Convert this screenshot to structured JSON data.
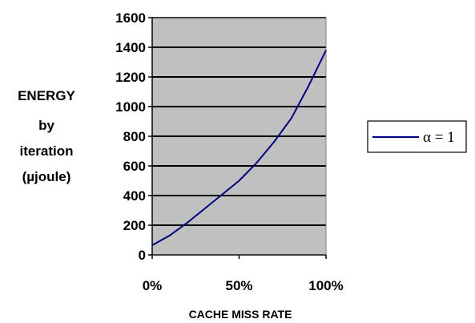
{
  "chart_data": {
    "type": "line",
    "xlabel": "CACHE MISS RATE",
    "ylabel_lines": [
      "ENERGY",
      "by",
      "iteration",
      "(µjoule)"
    ],
    "xlim": [
      0,
      100
    ],
    "ylim": [
      0,
      1600
    ],
    "x_ticks": [
      0,
      50,
      100
    ],
    "x_tick_labels": [
      "0%",
      "50%",
      "100%"
    ],
    "y_ticks": [
      0,
      200,
      400,
      600,
      800,
      1000,
      1200,
      1400,
      1600
    ],
    "y_tick_labels": [
      "0",
      "200",
      "400",
      "600",
      "800",
      "1000",
      "1200",
      "1400",
      "1600"
    ],
    "grid": true,
    "legend_position": "right",
    "plot_background": "#c0c0c0",
    "series": [
      {
        "name": "α = 1",
        "color": "#000080",
        "x": [
          0,
          10,
          20,
          30,
          40,
          50,
          60,
          70,
          80,
          90,
          100
        ],
        "y": [
          65,
          130,
          215,
          310,
          405,
          500,
          620,
          760,
          920,
          1140,
          1380
        ]
      }
    ]
  }
}
